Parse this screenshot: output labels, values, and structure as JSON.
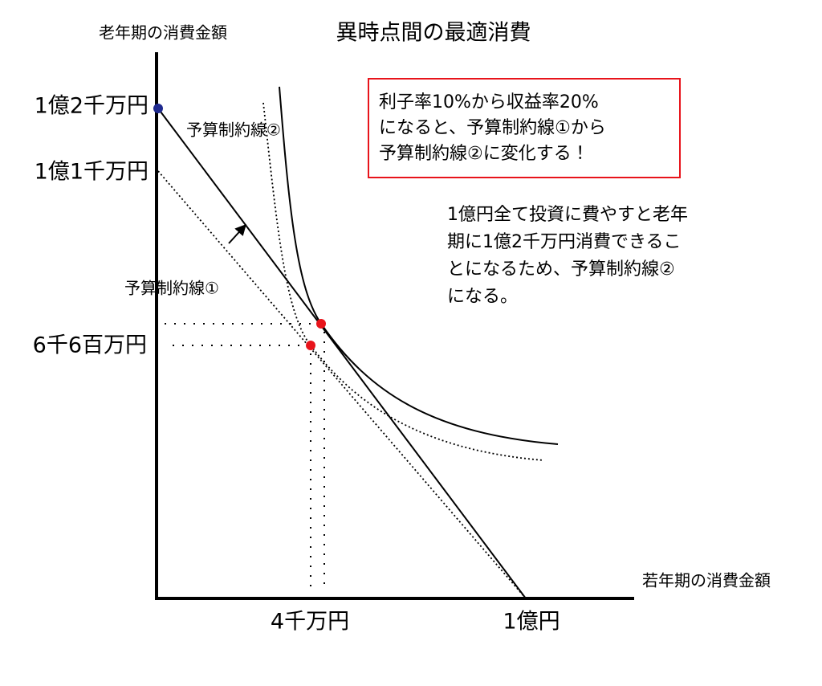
{
  "title": "異時点間の最適消費",
  "axes": {
    "y_label": "老年期の消費金額",
    "x_label": "若年期の消費金額"
  },
  "y_labels": [
    "1億2千万円",
    "1億1千万円",
    "6千6百万円"
  ],
  "x_labels": [
    "4千万円",
    "1億円"
  ],
  "line_labels": [
    "予算制約線②",
    "予算制約線①"
  ],
  "note_box": {
    "lines": [
      "利子率10%から収益率20%",
      "になると、予算制約線①から",
      "予算制約線②に変化する！"
    ]
  },
  "note": {
    "lines": [
      "1億円全て投資に費やすと老年",
      "期に1億2千万円消費できるこ",
      "とになるため、予算制約線②",
      "になる。"
    ]
  }
}
